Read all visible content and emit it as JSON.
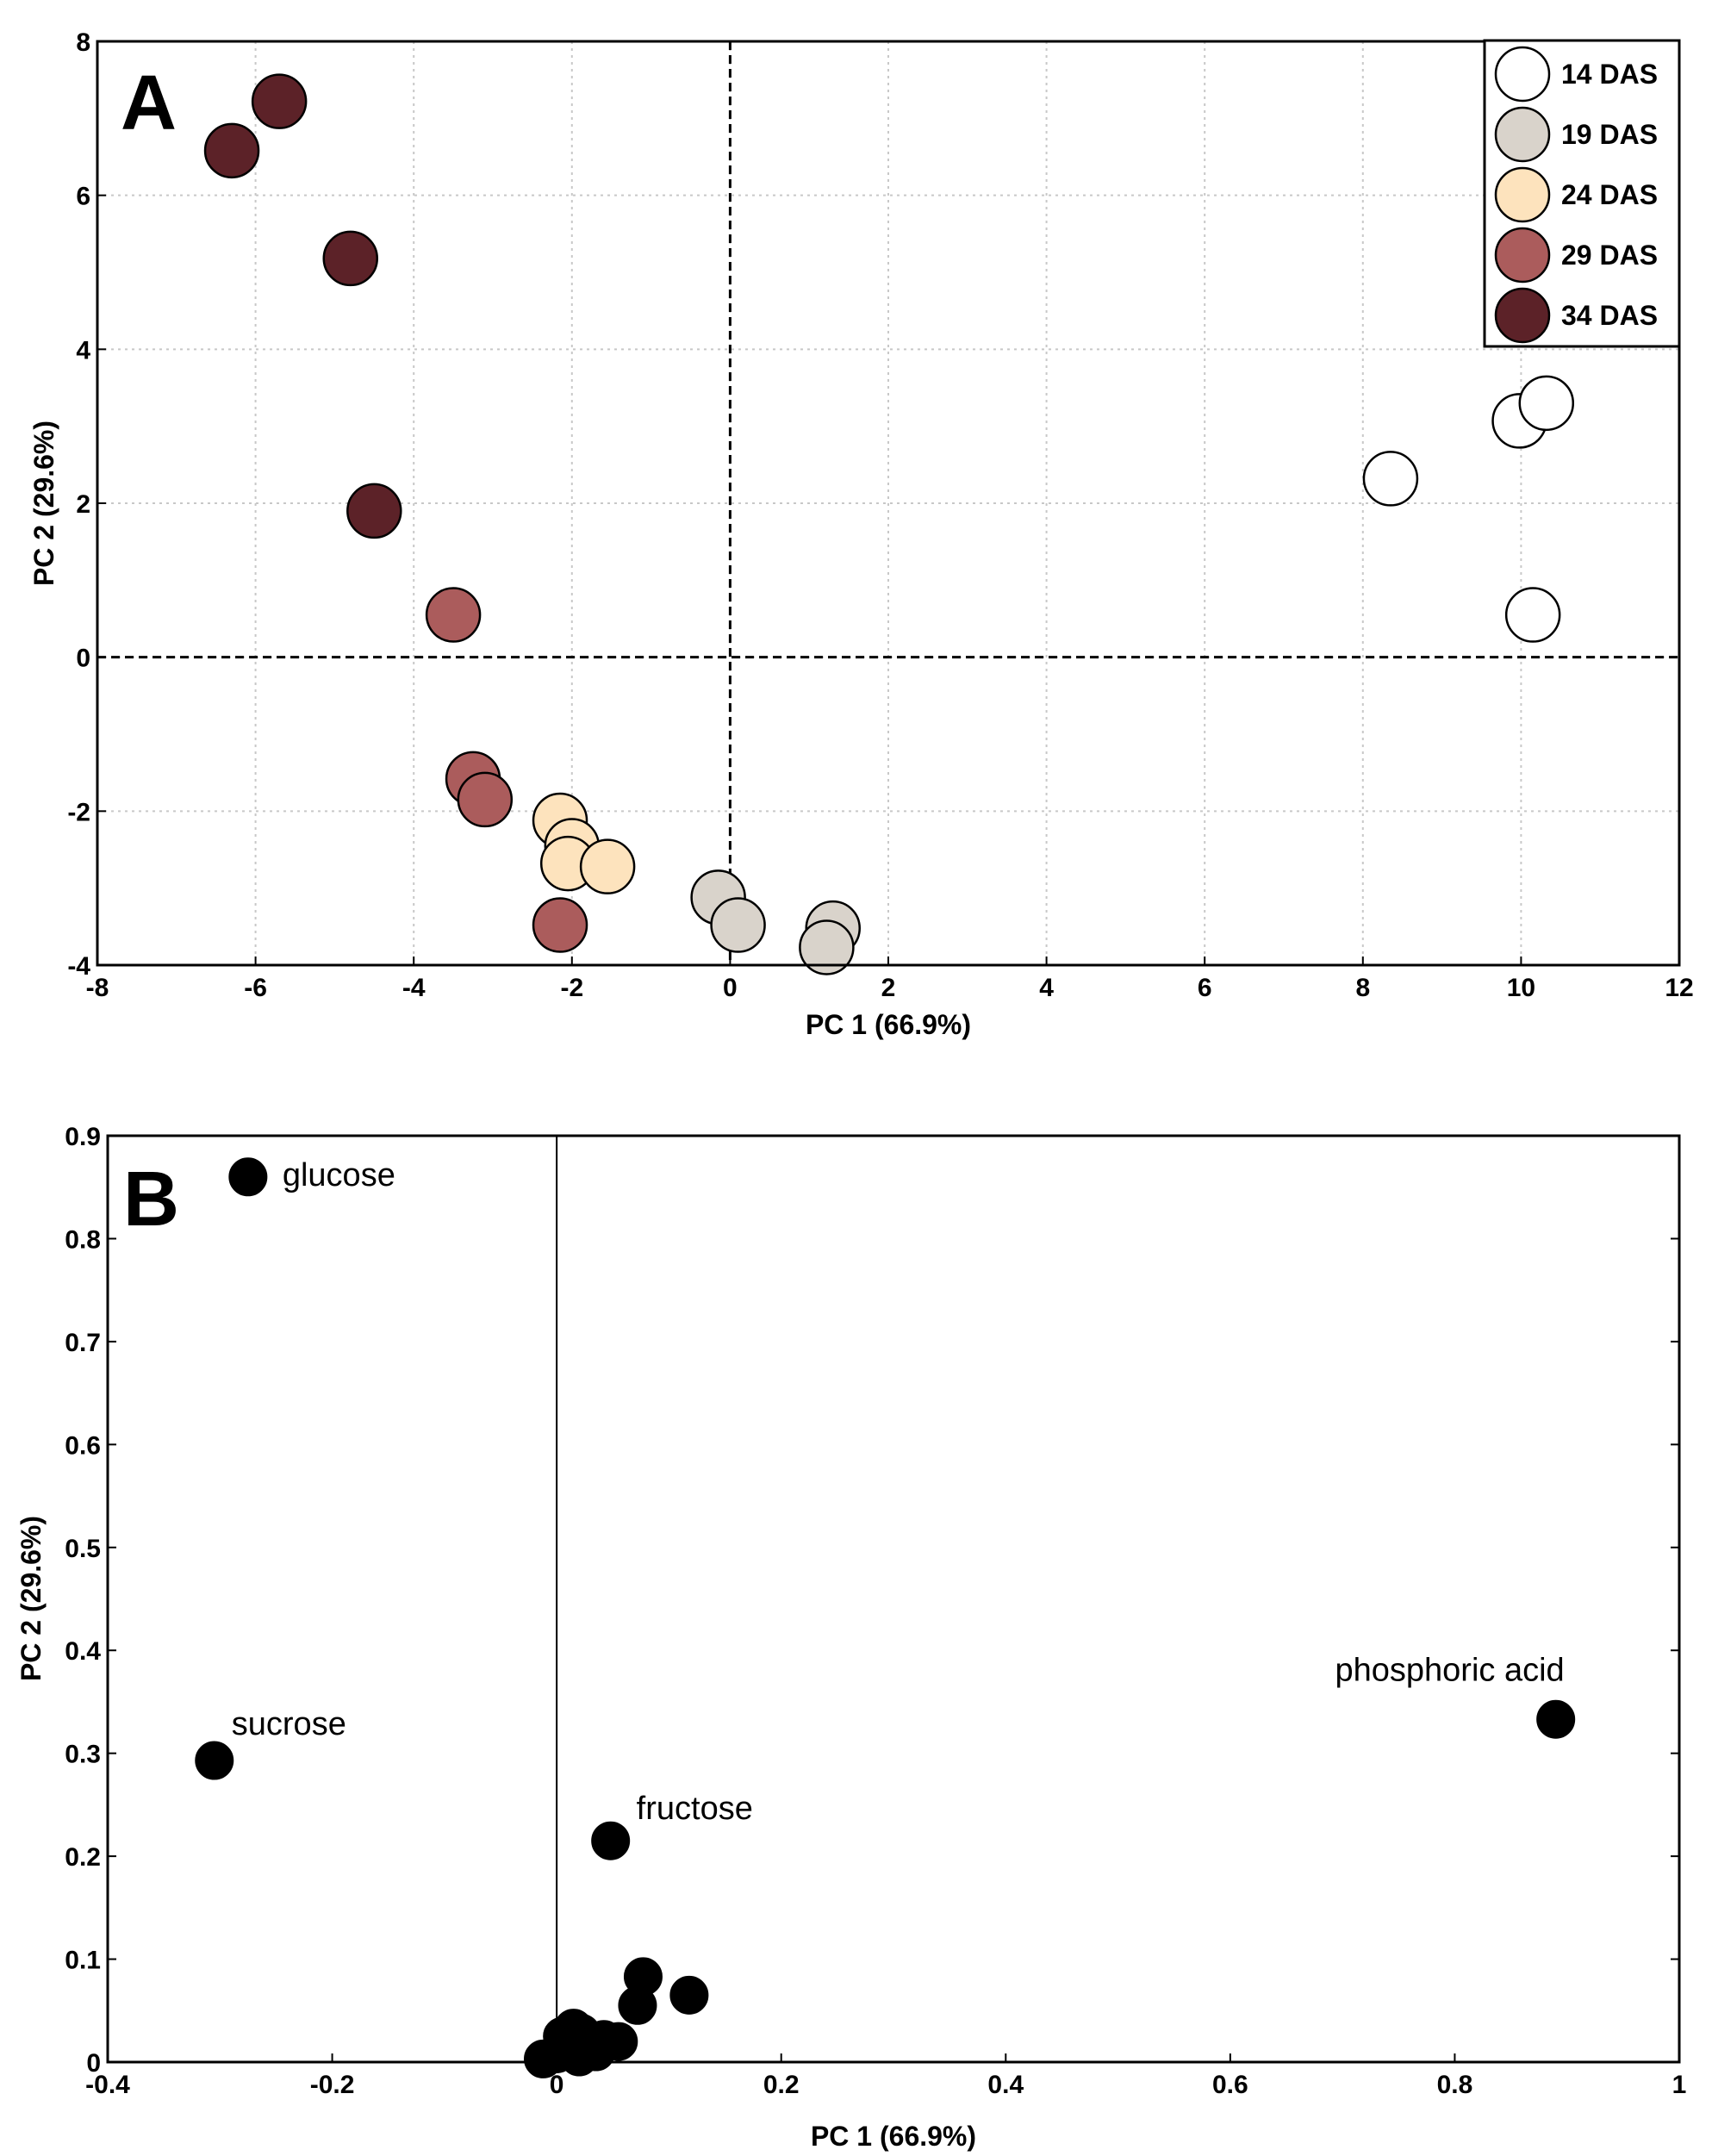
{
  "chart_data": [
    {
      "type": "scatter",
      "panel": "A",
      "xlabel": "PC 1 (66.9%)",
      "ylabel": "PC 2 (29.6%)",
      "xlim": [
        -8,
        12
      ],
      "ylim": [
        -4,
        8
      ],
      "xticks": [
        -8,
        -6,
        -4,
        -2,
        0,
        2,
        4,
        6,
        8,
        10,
        12
      ],
      "yticks": [
        -4,
        -2,
        0,
        2,
        4,
        6,
        8
      ],
      "grid": true,
      "legend_position": "top-right",
      "series": [
        {
          "name": "14 DAS",
          "color": "#ffffff",
          "points": [
            [
              8.35,
              2.32
            ],
            [
              9.98,
              3.07
            ],
            [
              10.32,
              3.3
            ],
            [
              10.15,
              0.55
            ]
          ]
        },
        {
          "name": "19 DAS",
          "color": "#d9d3cb",
          "points": [
            [
              -0.15,
              -3.12
            ],
            [
              0.1,
              -3.48
            ],
            [
              1.3,
              -3.52
            ],
            [
              1.22,
              -3.77
            ]
          ]
        },
        {
          "name": "24 DAS",
          "color": "#fde3bd",
          "points": [
            [
              -2.15,
              -2.12
            ],
            [
              -2.0,
              -2.45
            ],
            [
              -2.05,
              -2.68
            ],
            [
              -1.55,
              -2.72
            ]
          ]
        },
        {
          "name": "29 DAS",
          "color": "#ab5c5c",
          "points": [
            [
              -3.5,
              0.55
            ],
            [
              -3.25,
              -1.58
            ],
            [
              -3.1,
              -1.85
            ],
            [
              -2.15,
              -3.48
            ]
          ]
        },
        {
          "name": "34 DAS",
          "color": "#5c2228",
          "points": [
            [
              -6.3,
              6.58
            ],
            [
              -5.7,
              7.22
            ],
            [
              -4.8,
              5.18
            ],
            [
              -4.5,
              1.9
            ]
          ]
        }
      ]
    },
    {
      "type": "scatter",
      "panel": "B",
      "xlabel": "PC 1 (66.9%)",
      "ylabel": "PC 2 (29.6%)",
      "xlim": [
        -0.4,
        1
      ],
      "ylim": [
        0,
        0.9
      ],
      "xticks": [
        -0.4,
        -0.2,
        0,
        0.2,
        0.4,
        0.6,
        0.8,
        1
      ],
      "yticks": [
        0,
        0.1,
        0.2,
        0.3,
        0.4,
        0.5,
        0.6,
        0.7,
        0.8,
        0.9
      ],
      "grid": false,
      "points": [
        {
          "x": -0.275,
          "y": 0.86,
          "label": "glucose"
        },
        {
          "x": -0.305,
          "y": 0.293,
          "label": "sucrose"
        },
        {
          "x": 0.048,
          "y": 0.215,
          "label": "fructose"
        },
        {
          "x": 0.89,
          "y": 0.333,
          "label": "phosphoric acid"
        },
        {
          "x": 0.077,
          "y": 0.083
        },
        {
          "x": 0.072,
          "y": 0.055
        },
        {
          "x": 0.118,
          "y": 0.065
        },
        {
          "x": 0.055,
          "y": 0.02
        },
        {
          "x": 0.042,
          "y": 0.022
        },
        {
          "x": 0.03,
          "y": 0.015
        },
        {
          "x": 0.022,
          "y": 0.028
        },
        {
          "x": 0.015,
          "y": 0.033
        },
        {
          "x": 0.005,
          "y": 0.025
        },
        {
          "x": 0.01,
          "y": 0.012
        },
        {
          "x": 0.0,
          "y": 0.008
        },
        {
          "x": -0.012,
          "y": 0.003
        },
        {
          "x": 0.02,
          "y": 0.005
        },
        {
          "x": 0.035,
          "y": 0.01
        }
      ]
    }
  ]
}
